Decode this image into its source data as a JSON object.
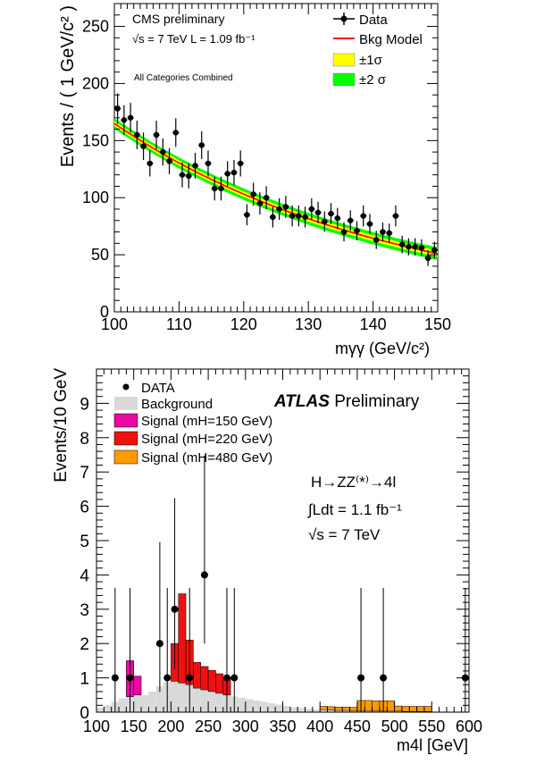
{
  "chart_data": [
    {
      "type": "scatter",
      "header": "CMS preliminary",
      "energy_label": "√s = 7 TeV L = 1.09 fb⁻¹",
      "note": "All Categories Combined",
      "xlabel": "mγγ (GeV/c²)",
      "ylabel": "Events / ( 1 GeV/c² )",
      "xlim": [
        100,
        150
      ],
      "ylim": [
        0,
        270
      ],
      "xticks": [
        100,
        110,
        120,
        130,
        140,
        150
      ],
      "yticks": [
        0,
        50,
        100,
        150,
        200,
        250
      ],
      "legend_position": "top-right",
      "legend": [
        "Data",
        "Bkg Model",
        "±1σ",
        "±2 σ"
      ],
      "colors": {
        "data": "#000000",
        "model": "#ff0000",
        "band1": "#ffff00",
        "band2": "#00ff00"
      },
      "model": {
        "a": 165,
        "b": 0.0235
      },
      "series": [
        {
          "name": "Data",
          "x": [
            100.5,
            101.5,
            102.5,
            103.5,
            104.5,
            105.5,
            106.5,
            107.5,
            108.5,
            109.5,
            110.5,
            111.5,
            112.5,
            113.5,
            114.5,
            115.5,
            116.5,
            117.5,
            118.5,
            119.5,
            120.5,
            121.5,
            122.5,
            123.5,
            124.5,
            125.5,
            126.5,
            127.5,
            128.5,
            129.5,
            130.5,
            131.5,
            132.5,
            133.5,
            134.5,
            135.5,
            136.5,
            137.5,
            138.5,
            139.5,
            140.5,
            141.5,
            142.5,
            143.5,
            144.5,
            145.5,
            146.5,
            147.5,
            148.5,
            149.5
          ],
          "y": [
            178,
            168,
            170,
            155,
            145,
            130,
            155,
            140,
            132,
            157,
            120,
            119,
            128,
            146,
            130,
            108,
            108,
            121,
            122,
            130,
            85,
            103,
            95,
            100,
            83,
            90,
            92,
            84,
            84,
            83,
            90,
            87,
            79,
            86,
            82,
            70,
            80,
            71,
            84,
            77,
            63,
            70,
            69,
            84,
            59,
            57,
            57,
            56,
            47,
            54
          ]
        }
      ]
    },
    {
      "type": "bar",
      "header_bold": "ATLAS",
      "header_rest": " Preliminary",
      "process_label": "H→ZZ⁽*⁾→4l",
      "lumi_label": "∫Ldt = 1.1 fb⁻¹",
      "energy_label": "√s = 7 TeV",
      "xlabel": "m4l [GeV]",
      "ylabel": "Events/10 GeV",
      "xlim": [
        100,
        600
      ],
      "ylim": [
        0,
        10
      ],
      "xticks": [
        100,
        150,
        200,
        250,
        300,
        350,
        400,
        450,
        500,
        550,
        600
      ],
      "yticks": [
        0,
        1,
        2,
        3,
        4,
        5,
        6,
        7,
        8,
        9
      ],
      "legend_position": "top-left",
      "legend": [
        "DATA",
        "Background",
        "Signal (mH=150 GeV)",
        "Signal (mH=220 GeV)",
        "Signal (mH=480 GeV)"
      ],
      "colors": {
        "background": "#d9d9d9",
        "sig150": "#e60aa0",
        "sig220": "#ee1111",
        "sig480": "#ff9900",
        "data": "#000000"
      },
      "bin_edges": [
        100,
        110,
        120,
        130,
        140,
        150,
        160,
        170,
        180,
        190,
        200,
        210,
        220,
        230,
        240,
        250,
        260,
        270,
        280,
        290,
        300,
        310,
        320,
        330,
        340,
        350,
        360,
        370,
        380,
        390,
        400,
        410,
        420,
        430,
        440,
        450,
        460,
        470,
        480,
        490,
        500,
        510,
        520,
        530,
        540,
        550,
        560,
        570,
        580,
        590,
        600
      ],
      "background": [
        0.12,
        0.2,
        0.3,
        0.4,
        0.45,
        0.5,
        0.5,
        0.6,
        0.75,
        0.88,
        0.9,
        0.85,
        0.8,
        0.7,
        0.65,
        0.6,
        0.55,
        0.5,
        0.46,
        0.42,
        0.38,
        0.34,
        0.3,
        0.26,
        0.22,
        0.18,
        0.15,
        0.12,
        0.1,
        0.08,
        0.07,
        0.06,
        0.05,
        0.05,
        0.04,
        0.04,
        0.04,
        0.03,
        0.03,
        0.03,
        0.03,
        0.02,
        0.02,
        0.02,
        0.02,
        0.02,
        0.02,
        0.02,
        0.02,
        0.02
      ],
      "signal_150": [
        0,
        0,
        0,
        0,
        1.05,
        0.55,
        0,
        0,
        0,
        0,
        0,
        0,
        0,
        0,
        0,
        0,
        0,
        0,
        0,
        0,
        0,
        0,
        0,
        0,
        0,
        0,
        0,
        0,
        0,
        0,
        0,
        0,
        0,
        0,
        0,
        0,
        0,
        0,
        0,
        0,
        0,
        0,
        0,
        0,
        0,
        0,
        0,
        0,
        0,
        0
      ],
      "signal_220": [
        0,
        0,
        0,
        0,
        0,
        0,
        0,
        0,
        0,
        0,
        1.1,
        2.6,
        1.3,
        0.75,
        0.68,
        0.62,
        0.57,
        0.52,
        0,
        0,
        0,
        0,
        0,
        0,
        0,
        0,
        0,
        0,
        0,
        0,
        0,
        0,
        0,
        0,
        0,
        0,
        0,
        0,
        0,
        0,
        0,
        0,
        0,
        0,
        0,
        0,
        0,
        0,
        0,
        0
      ],
      "signal_480": [
        0,
        0,
        0,
        0,
        0,
        0,
        0,
        0,
        0,
        0,
        0,
        0,
        0,
        0,
        0,
        0,
        0,
        0,
        0,
        0,
        0,
        0,
        0,
        0,
        0,
        0,
        0,
        0,
        0,
        0,
        0.1,
        0.1,
        0.1,
        0.1,
        0.1,
        0.3,
        0.3,
        0.3,
        0.3,
        0.3,
        0.15,
        0.15,
        0.15,
        0.15,
        0.15,
        0,
        0,
        0,
        0,
        0
      ],
      "data_points": [
        {
          "x": 125,
          "y": 1
        },
        {
          "x": 145,
          "y": 1
        },
        {
          "x": 185,
          "y": 2
        },
        {
          "x": 195,
          "y": 1
        },
        {
          "x": 205,
          "y": 3
        },
        {
          "x": 225,
          "y": 1
        },
        {
          "x": 245,
          "y": 4
        },
        {
          "x": 275,
          "y": 1
        },
        {
          "x": 285,
          "y": 1
        },
        {
          "x": 455,
          "y": 1
        },
        {
          "x": 485,
          "y": 1
        },
        {
          "x": 595,
          "y": 1
        }
      ]
    }
  ]
}
